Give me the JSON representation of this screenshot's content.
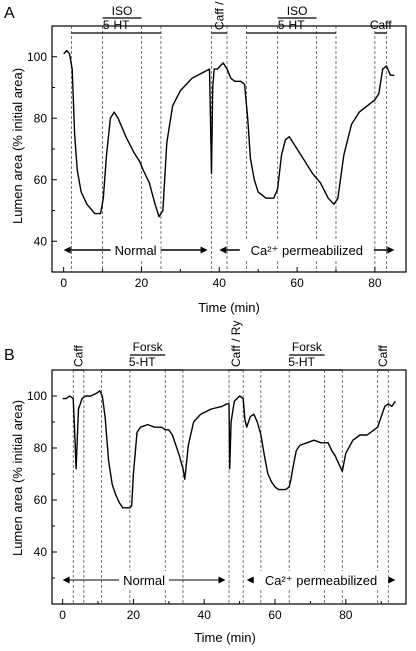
{
  "chart_data": [
    {
      "panel_label": "A",
      "type": "line",
      "xlabel": "Time (min)",
      "ylabel": "Lumen area (% initial area)",
      "xlim": [
        -3,
        88
      ],
      "ylim": [
        30,
        110
      ],
      "xticks": [
        "0",
        "20",
        "40",
        "60",
        "80"
      ],
      "yticks": [
        "40",
        "60",
        "80",
        "100"
      ],
      "treatments": [
        {
          "label": "5-HT",
          "start": 2,
          "end": 25
        },
        {
          "label": "ISO",
          "start": 10,
          "end": 20
        },
        {
          "label": "Caff / Ry",
          "start": 38,
          "end": 42
        },
        {
          "label": "5-HT",
          "start": 47,
          "end": 70
        },
        {
          "label": "ISO",
          "start": 55,
          "end": 65
        },
        {
          "label": "Caff",
          "start": 80,
          "end": 83
        }
      ],
      "markers": [
        2,
        10,
        20,
        25,
        38,
        42,
        47,
        55,
        65,
        70,
        80,
        83
      ],
      "conditions": [
        {
          "label": "Normal",
          "start": 0,
          "end": 37
        },
        {
          "label": "Ca²⁺ permeabilized",
          "start": 40,
          "end": 85
        }
      ],
      "series": [
        {
          "x": [
            0,
            0.8,
            1.5,
            2.2,
            2.8,
            3.5,
            4.5,
            6,
            8,
            9.5,
            10.2,
            11,
            12,
            13,
            14,
            16,
            18,
            19.5,
            20.5,
            22,
            23.5,
            24.5,
            25.5,
            26.5,
            28,
            30,
            33,
            36,
            37.5,
            38,
            38.3,
            38.7,
            39.5,
            41,
            42,
            43,
            44,
            45.5,
            46.5,
            47.3,
            48,
            49,
            50,
            52,
            54,
            55,
            56,
            57,
            58,
            60,
            62,
            64,
            66,
            68,
            69.5,
            70.5,
            72,
            74,
            76,
            78,
            80,
            81,
            82,
            83,
            84,
            85
          ],
          "y": [
            101,
            102,
            101,
            96,
            75,
            63,
            56,
            52,
            49,
            49,
            54,
            68,
            80,
            82,
            80,
            74,
            69,
            66,
            63,
            59,
            52,
            48,
            50,
            72,
            84,
            89,
            93,
            95,
            96,
            62,
            90,
            96,
            96,
            98,
            96,
            93,
            92,
            92,
            91,
            80,
            67,
            60,
            56,
            54,
            54,
            57,
            68,
            73,
            74,
            70,
            66,
            62,
            59,
            54,
            52,
            54,
            68,
            78,
            82,
            84,
            86,
            88,
            96,
            97,
            94,
            94
          ]
        }
      ]
    },
    {
      "panel_label": "B",
      "type": "line",
      "xlabel": "Time (min)",
      "ylabel": "Lumen area (% initial area)",
      "xlim": [
        -3,
        97
      ],
      "ylim": [
        20,
        110
      ],
      "xticks": [
        "0",
        "20",
        "40",
        "60",
        "80"
      ],
      "yticks": [
        "40",
        "60",
        "80",
        "100"
      ],
      "treatments": [
        {
          "label": "Caff",
          "start": 3,
          "end": 6
        },
        {
          "label": "5-HT",
          "start": 11,
          "end": 34
        },
        {
          "label": "Forsk",
          "start": 19,
          "end": 29
        },
        {
          "label": "Caff / Ry",
          "start": 47,
          "end": 51
        },
        {
          "label": "5-HT",
          "start": 56,
          "end": 79
        },
        {
          "label": "Forsk",
          "start": 64,
          "end": 74
        },
        {
          "label": "Caff",
          "start": 89,
          "end": 92
        }
      ],
      "markers": [
        3,
        6,
        11,
        19,
        29,
        34,
        47,
        51,
        56,
        64,
        74,
        79,
        89,
        92
      ],
      "conditions": [
        {
          "label": "Normal",
          "start": 0,
          "end": 46
        },
        {
          "label": "Ca²⁺ permeabilized",
          "start": 52,
          "end": 94
        }
      ],
      "series": [
        {
          "x": [
            0,
            1,
            2,
            3,
            3.3,
            3.8,
            4.5,
            5.5,
            6.5,
            8,
            9.5,
            10.5,
            11.2,
            12,
            13,
            14,
            15,
            16,
            17,
            18,
            19,
            19.5,
            20,
            21,
            22,
            24,
            26,
            28,
            29,
            30,
            31,
            32,
            33,
            34,
            34.5,
            35.5,
            37,
            39,
            42,
            45,
            46.5,
            47,
            47.2,
            47.6,
            48.5,
            50,
            51,
            51.5,
            52,
            53,
            54,
            55,
            56,
            57,
            58,
            59,
            60,
            61,
            62,
            63,
            64,
            64.5,
            65,
            66,
            67,
            69,
            71,
            73,
            74,
            75,
            76,
            77,
            78,
            79,
            80,
            82,
            84,
            86,
            88,
            89,
            90,
            91,
            92,
            93,
            94
          ],
          "y": [
            99,
            99,
            100,
            99,
            90,
            72,
            95,
            99,
            100,
            100,
            101,
            102,
            100,
            92,
            75,
            66,
            62,
            59,
            57,
            57,
            57,
            58,
            70,
            86,
            88,
            89,
            88,
            88,
            87,
            87,
            85,
            81,
            77,
            72,
            68,
            81,
            90,
            93,
            95,
            96,
            97,
            97,
            72,
            90,
            98,
            100,
            99,
            91,
            88,
            92,
            93,
            90,
            85,
            77,
            70,
            67,
            65,
            64,
            64,
            64,
            65,
            68,
            72,
            79,
            81,
            82,
            83,
            82,
            82,
            82,
            79,
            77,
            74,
            71,
            78,
            83,
            85,
            85,
            87,
            88,
            92,
            96,
            97,
            96,
            98
          ]
        }
      ]
    }
  ]
}
